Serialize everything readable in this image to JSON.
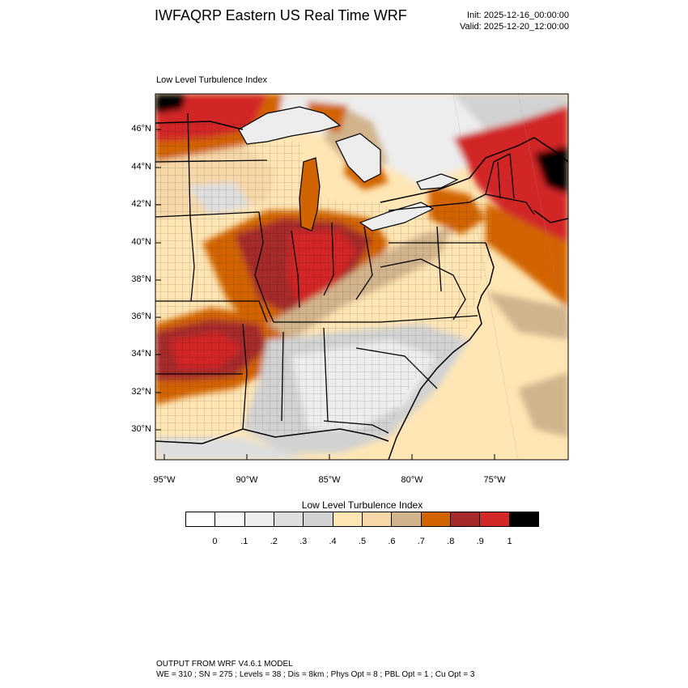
{
  "title": "IWFAQRP Eastern US Real Time WRF",
  "init_time": "Init: 2025-12-16_00:00:00",
  "valid_time": "Valid: 2025-12-20_12:00:00",
  "panel_label": "Low Level Turbulence Index",
  "lat_labels": [
    "46°N",
    "44°N",
    "42°N",
    "40°N",
    "38°N",
    "36°N",
    "34°N",
    "32°N",
    "30°N"
  ],
  "lon_labels": [
    "95°W",
    "90°W",
    "85°W",
    "80°W",
    "75°W"
  ],
  "colorbar": {
    "title": "Low Level Turbulence Index",
    "tick_labels": [
      "0",
      ".1",
      ".2",
      ".3",
      ".4",
      ".5",
      ".6",
      ".7",
      ".8",
      ".9",
      "1"
    ],
    "colors": [
      "#ffffff",
      "#f7f7f7",
      "#ededed",
      "#dedede",
      "#d2d2d2",
      "#ffe6b4",
      "#f6d7a8",
      "#d2b48c",
      "#d26400",
      "#a52a2a",
      "#d22828",
      "#000000"
    ]
  },
  "footer": {
    "line1": "OUTPUT FROM WRF V4.6.1 MODEL",
    "line2": "WE = 310 ; SN = 275 ; Levels = 38 ; Dis = 8km ; Phys Opt = 8 ; PBL Opt = 1 ; Cu Opt = 3"
  }
}
